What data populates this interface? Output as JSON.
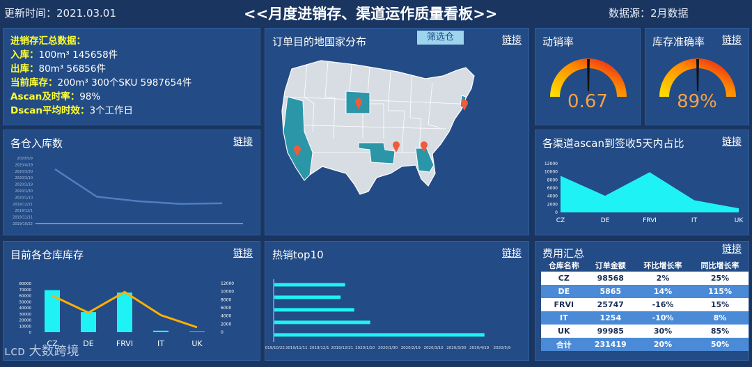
{
  "header": {
    "updated": "更新时间：2021.03.01",
    "title": "<<月度进销存、渠道运作质量看板>>",
    "source": "数据源：2月数据"
  },
  "summary": {
    "heading": "进销存汇总数据：",
    "rows": [
      {
        "key": "入库：",
        "value": "100m³    145658件"
      },
      {
        "key": "出库：",
        "value": "80m³     56856件"
      },
      {
        "key": "当前库存：",
        "value": "200m³  300个SKU 5987654件"
      },
      {
        "key": "Ascan及时率：",
        "value": "98%"
      },
      {
        "key": "Dscan平均时效：",
        "value": "3个工作日"
      }
    ]
  },
  "map_panel": {
    "title": "订单目的地国家分布",
    "filter_label": "筛选仓",
    "link": "链接"
  },
  "gauges": [
    {
      "title": "动销率",
      "value_text": "0.67",
      "value": 0.67,
      "link": ""
    },
    {
      "title": "库存准确率",
      "value_text": "89%",
      "value": 0.89,
      "link": "链接"
    }
  ],
  "colors": {
    "accent": "#1ff2f5",
    "line": "#4f7fc0",
    "orange": "#ffb000",
    "panel": "#234b85",
    "gauge_value": "#f3a24a",
    "summary_key": "#ffff33"
  },
  "inbound": {
    "title": "各仓入库数",
    "link": "链接",
    "chart_data": {
      "type": "line",
      "y_ticks": [
        "2020/5/9",
        "2020/4/19",
        "2020/3/30",
        "2020/3/10",
        "2020/2/19",
        "2020/1/30",
        "2020/1/10",
        "2019/12/21",
        "2019/12/1",
        "2019/11/11",
        "2019/10/22"
      ],
      "x_ticks": [
        "",
        "",
        "",
        "",
        ""
      ],
      "values": [
        8.3,
        4.1,
        3.4,
        3.0,
        3.1
      ]
    }
  },
  "ascan": {
    "title": "各渠道ascan到签收5天内占比",
    "link": "链接",
    "chart_data": {
      "type": "area",
      "categories": [
        "CZ",
        "DE",
        "FRVI",
        "IT",
        "UK"
      ],
      "values": [
        9000,
        4100,
        9900,
        3000,
        1000
      ],
      "ylim": [
        0,
        12000
      ],
      "y_ticks": [
        0,
        2000,
        4000,
        6000,
        8000,
        10000,
        12000
      ]
    }
  },
  "stock": {
    "title": "目前各仓库库存",
    "link": "链接",
    "chart_data": {
      "type": "bar",
      "categories": [
        "CZ",
        "DE",
        "FRVI",
        "IT",
        "UK"
      ],
      "series": [
        {
          "values": [
            69000,
            33000,
            65000,
            2500,
            1000
          ]
        },
        {
          "values": [
            9000,
            4800,
            9900,
            4200,
            1200
          ]
        }
      ],
      "ylim_left": [
        0,
        80000
      ],
      "ylim_right": [
        0,
        12000
      ],
      "y_ticks_left": [
        0,
        10000,
        20000,
        30000,
        40000,
        50000,
        60000,
        70000,
        80000
      ],
      "y_ticks_right": [
        0,
        2000,
        4000,
        6000,
        8000,
        10000,
        12000
      ]
    }
  },
  "top10": {
    "title": "热销top10",
    "link": "链接",
    "chart_data": {
      "type": "bar",
      "orientation": "horizontal",
      "x_ticks": [
        "2019/10/22",
        "2019/11/11",
        "2019/12/1",
        "2019/12/21",
        "2020/1/10",
        "2020/1/30",
        "2020/2/19",
        "2020/3/10",
        "2020/3/30",
        "2020/4/19",
        "2020/5/9"
      ],
      "values": [
        3.1,
        2.9,
        3.5,
        4.2,
        9.2
      ]
    }
  },
  "fees": {
    "title": "费用汇总",
    "link": "链接",
    "columns": [
      "仓库名称",
      "订单金额",
      "环比增长率",
      "同比增长率"
    ],
    "rows": [
      [
        "CZ",
        "98568",
        "2%",
        "25%"
      ],
      [
        "DE",
        "5865",
        "14%",
        "115%"
      ],
      [
        "FRVI",
        "25747",
        "-16%",
        "15%"
      ],
      [
        "IT",
        "1254",
        "-10%",
        "8%"
      ],
      [
        "UK",
        "99985",
        "30%",
        "85%"
      ],
      [
        "合计",
        "231419",
        "20%",
        "50%"
      ]
    ]
  },
  "watermark": "大数跨境"
}
